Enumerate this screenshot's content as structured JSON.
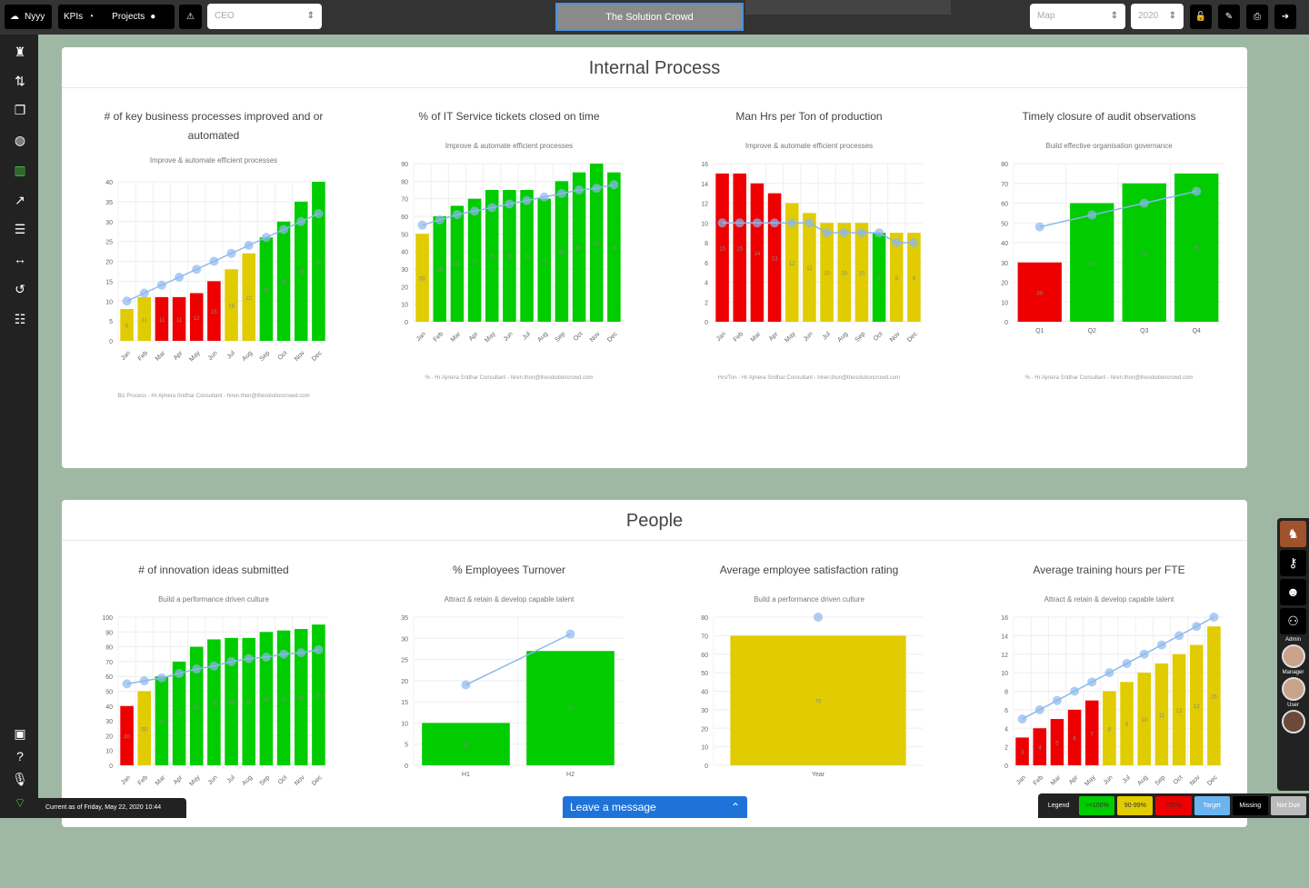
{
  "topbar": {
    "app_label": "Nyyy",
    "kpis_label": "KPIs",
    "projects_label": "Projects",
    "role_select": "CEO",
    "title_button": "The Solution Crowd",
    "view_select": "Map",
    "year_select": "2020"
  },
  "sections": [
    {
      "title": "Internal Process"
    },
    {
      "title": "People"
    }
  ],
  "colors": {
    "green": "#00cc00",
    "yellow": "#e0cc00",
    "red": "#ee0000",
    "target": "#8ab8ee"
  },
  "charts": [
    {
      "title": "# of key business processes improved and or automated",
      "subtitle": "Improve & automate efficient processes",
      "footer": "Biz Process - Hr Ajmera Sridhar Consultant - hiren.thon@thesolutioncrowd.com",
      "categories": [
        "Jan",
        "Feb",
        "Mar",
        "Apr",
        "May",
        "Jun",
        "Jul",
        "Aug",
        "Sep",
        "Oct",
        "Nov",
        "Dec"
      ],
      "values": [
        8,
        11,
        11,
        11,
        12,
        15,
        18,
        22,
        26,
        30,
        35,
        40
      ],
      "target": [
        10,
        12,
        14,
        16,
        18,
        20,
        22,
        24,
        26,
        28,
        30,
        32
      ],
      "status": [
        "y",
        "y",
        "r",
        "r",
        "r",
        "r",
        "y",
        "y",
        "g",
        "g",
        "g",
        "g"
      ],
      "ymax": 40,
      "ystep": 5
    },
    {
      "title": "% of IT Service tickets closed on time",
      "subtitle": "Improve & automate efficient processes",
      "footer": "% - Hr Ajmera Sridhar Consultant - hiren.thon@thesolutioncrowd.com",
      "categories": [
        "Jan",
        "Feb",
        "Mar",
        "Apr",
        "May",
        "Jun",
        "Jul",
        "Aug",
        "Sep",
        "Oct",
        "Nov",
        "Dec"
      ],
      "values": [
        50,
        60,
        66,
        70,
        75,
        75,
        75,
        70,
        80,
        85,
        90,
        85
      ],
      "target": [
        55,
        58,
        61,
        63,
        65,
        67,
        69,
        71,
        73,
        75,
        76,
        78
      ],
      "status": [
        "y",
        "g",
        "g",
        "g",
        "g",
        "g",
        "g",
        "g",
        "g",
        "g",
        "g",
        "g"
      ],
      "ymax": 90,
      "ystep": 10
    },
    {
      "title": "Man Hrs per Ton of production",
      "subtitle": "Improve & automate efficient processes",
      "footer": "Hrs/Ton - Hr Ajmera Sridhar Consultant - hiren.thon@thesolutioncrowd.com",
      "categories": [
        "Jan",
        "Feb",
        "Mar",
        "Apr",
        "May",
        "Jun",
        "Jul",
        "Aug",
        "Sep",
        "Oct",
        "Nov",
        "Dec"
      ],
      "values": [
        15,
        15,
        14,
        13,
        12,
        11,
        10,
        10,
        10,
        9,
        9,
        9
      ],
      "target": [
        10,
        10,
        10,
        10,
        10,
        10,
        9,
        9,
        9,
        9,
        8,
        8
      ],
      "status": [
        "r",
        "r",
        "r",
        "r",
        "y",
        "y",
        "y",
        "y",
        "y",
        "g",
        "y",
        "y"
      ],
      "ymax": 16,
      "ystep": 2
    },
    {
      "title": "Timely closure of audit observations",
      "subtitle": "Build effective organisation governance",
      "footer": "% - Hr Ajmera Sridhar Consultant - hiren.thon@thesolutioncrowd.com",
      "categories": [
        "Q1",
        "Q2",
        "Q3",
        "Q4"
      ],
      "values": [
        30,
        60,
        70,
        75
      ],
      "target": [
        48,
        54,
        60,
        66
      ],
      "status": [
        "r",
        "g",
        "g",
        "g"
      ],
      "ymax": 80,
      "ystep": 10
    },
    {
      "title": "# of innovation ideas submitted",
      "subtitle": "Build a performance driven culture",
      "footer": "",
      "categories": [
        "Jan",
        "Feb",
        "Mar",
        "Apr",
        "May",
        "Jun",
        "Jul",
        "Aug",
        "Sep",
        "Oct",
        "Nov",
        "Dec"
      ],
      "values": [
        40,
        50,
        60,
        70,
        80,
        85,
        86,
        86,
        90,
        91,
        92,
        95
      ],
      "target": [
        55,
        57,
        59,
        62,
        65,
        67,
        70,
        72,
        73,
        75,
        76,
        78
      ],
      "status": [
        "r",
        "y",
        "g",
        "g",
        "g",
        "g",
        "g",
        "g",
        "g",
        "g",
        "g",
        "g"
      ],
      "ymax": 100,
      "ystep": 10
    },
    {
      "title": "% Employees Turnover",
      "subtitle": "Attract & retain & develop capable talent",
      "footer": "",
      "categories": [
        "H1",
        "H2"
      ],
      "values": [
        10,
        27
      ],
      "target": [
        19,
        31
      ],
      "status": [
        "g",
        "g"
      ],
      "ymax": 35,
      "ystep": 5
    },
    {
      "title": "Average employee satisfaction rating",
      "subtitle": "Build a performance driven culture",
      "footer": "",
      "categories": [
        "Year"
      ],
      "values": [
        70
      ],
      "target": [
        80
      ],
      "status": [
        "y"
      ],
      "ymax": 80,
      "ystep": 10
    },
    {
      "title": "Average training hours per FTE",
      "subtitle": "Attract & retain & develop capable talent",
      "footer": "",
      "categories": [
        "Jan",
        "Feb",
        "Mar",
        "Apr",
        "May",
        "Jun",
        "Jul",
        "Aug",
        "Sep",
        "Oct",
        "Nov",
        "Dec"
      ],
      "values": [
        3,
        4,
        5,
        6,
        7,
        8,
        9,
        10,
        11,
        12,
        13,
        15
      ],
      "target": [
        5,
        6,
        7,
        8,
        9,
        10,
        11,
        12,
        13,
        14,
        15,
        16
      ],
      "status": [
        "r",
        "r",
        "r",
        "r",
        "r",
        "y",
        "y",
        "y",
        "y",
        "y",
        "y",
        "y"
      ],
      "ymax": 16,
      "ystep": 2
    }
  ],
  "rightbar": {
    "admin": "Admin",
    "manager": "Manager",
    "user": "User"
  },
  "legend": {
    "title": "Legend",
    "green": ">=100%",
    "yellow": "90-99%",
    "red": "<90%",
    "target": "Target",
    "missing": "Missing",
    "not_due": "Not Due"
  },
  "status": "Current as of Friday, May 22, 2020 10:44",
  "message": {
    "label": "Leave a message"
  }
}
